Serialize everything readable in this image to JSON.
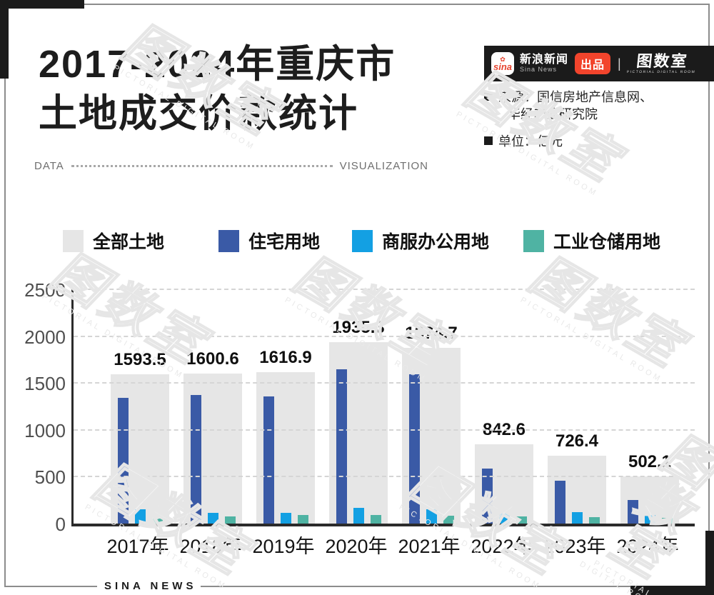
{
  "header": {
    "title_line1": "2017-2024年重庆市",
    "title_line2": "土地成交价款统计",
    "brand": {
      "sina_logo_text": "sina",
      "sina_flower_icon": "✿",
      "brand_name_cn": "新浪新闻",
      "brand_name_en": "Sina News",
      "badge_label": "出品",
      "divider_glyph": "|",
      "studio_logo_cn": "图数室",
      "studio_logo_en": "PICTORIAL DIGITAL ROOM"
    },
    "source_line1": "来源：国信房地产信息网、",
    "source_line2": "华经产业研究院",
    "unit_line": "单位：亿元"
  },
  "divider": {
    "left_label": "DATA",
    "right_label": "VISUALIZATION"
  },
  "chart_data": {
    "type": "bar",
    "title": "2017-2024年重庆市土地成交价款统计",
    "unit": "亿元",
    "categories": [
      "2017年",
      "2018年",
      "2019年",
      "2020年",
      "2021年",
      "2022年",
      "2023年",
      "2024年"
    ],
    "series": [
      {
        "name": "全部土地",
        "color": "#e6e6e6",
        "values": [
          1593.5,
          1600.6,
          1616.9,
          1935.3,
          1874.7,
          842.6,
          726.4,
          502.1
        ],
        "value_labels_shown": true
      },
      {
        "name": "住宅用地",
        "color": "#3a5aa6",
        "values": [
          1340,
          1370,
          1360,
          1645,
          1590,
          585,
          455,
          250
        ],
        "value_labels_shown": false,
        "values_estimated_from_pixels": true
      },
      {
        "name": "商服办公用地",
        "color": "#13a0e3",
        "values": [
          150,
          115,
          115,
          165,
          155,
          110,
          120,
          95
        ],
        "value_labels_shown": false,
        "values_estimated_from_pixels": true
      },
      {
        "name": "工业仓储用地",
        "color": "#4fb3a3",
        "values": [
          55,
          75,
          95,
          90,
          85,
          75,
          65,
          60
        ],
        "value_labels_shown": false,
        "values_estimated_from_pixels": true
      }
    ],
    "ylim": [
      0,
      2500
    ],
    "y_ticks": [
      0,
      500,
      1000,
      1500,
      2000,
      2500
    ],
    "grid": "horizontal-dashed",
    "legend_position": "top"
  },
  "footer": {
    "brand": "SINA NEWS"
  },
  "watermark": {
    "text": "图数室",
    "subtext": "PICTORIAL DIGITAL ROOM"
  },
  "colors": {
    "accent_red": "#f2442c",
    "bar_black": "#1b1b1b",
    "total_gray": "#e6e6e6",
    "residential_blue": "#3a5aa6",
    "commercial_blue": "#13a0e3",
    "industrial_teal": "#4fb3a3"
  }
}
